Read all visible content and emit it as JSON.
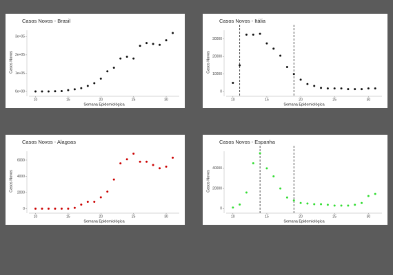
{
  "chart_data": [
    {
      "type": "scatter",
      "title": "Casos Novos - Brasil",
      "x_label": "Semana Epidemiológica",
      "y_label": "Casos Novos",
      "x": [
        10,
        11,
        12,
        13,
        14,
        15,
        16,
        17,
        18,
        19,
        20,
        21,
        22,
        23,
        24,
        25,
        26,
        27,
        28,
        29,
        30,
        31
      ],
      "values": [
        0,
        0,
        0,
        1000,
        2000,
        7000,
        12000,
        18000,
        30000,
        45000,
        70000,
        110000,
        130000,
        180000,
        190000,
        180000,
        250000,
        265000,
        260000,
        255000,
        280000,
        320000
      ],
      "color": "#111111",
      "xlim": [
        9,
        32
      ],
      "xticks": [
        10,
        15,
        20,
        25,
        30
      ],
      "ylim": [
        -15000,
        335000
      ],
      "yticks": [
        {
          "value": 0,
          "label": "0e+00"
        },
        {
          "value": 100000,
          "label": "1e+05"
        },
        {
          "value": 200000,
          "label": "2e+05"
        },
        {
          "value": 300000,
          "label": "3e+05"
        }
      ]
    },
    {
      "type": "scatter",
      "title": "Casos Novos - Itália",
      "x_label": "Semana Epidemiológica",
      "y_label": "Casos Novos",
      "x": [
        10,
        11,
        12,
        13,
        14,
        15,
        16,
        17,
        18,
        19,
        20,
        21,
        22,
        23,
        24,
        25,
        26,
        27,
        28,
        29,
        30,
        31
      ],
      "values": [
        5000,
        15000,
        32500,
        32500,
        33000,
        27500,
        24500,
        20500,
        14000,
        10000,
        6800,
        4300,
        3200,
        2100,
        1800,
        1800,
        1800,
        1400,
        1400,
        1400,
        1800,
        1800
      ],
      "color": "#111111",
      "xlim": [
        9,
        32
      ],
      "xticks": [
        10,
        15,
        20,
        25,
        30
      ],
      "ylim": [
        -1500,
        35000
      ],
      "yticks": [
        0,
        10000,
        20000,
        30000
      ],
      "vlines": [
        11,
        19
      ]
    },
    {
      "type": "scatter",
      "title": "Casos Novos - Alagoas",
      "x_label": "Semana Epidemiológica",
      "y_label": "Casos Novos",
      "x": [
        10,
        11,
        12,
        13,
        14,
        15,
        16,
        17,
        18,
        19,
        20,
        21,
        22,
        23,
        24,
        25,
        26,
        27,
        28,
        29,
        30,
        31
      ],
      "values": [
        0,
        0,
        0,
        0,
        0,
        0,
        100,
        500,
        850,
        850,
        1400,
        2100,
        3600,
        5600,
        6100,
        6800,
        5800,
        5800,
        5400,
        5000,
        5200,
        6300
      ],
      "color": "#cc0000",
      "xlim": [
        9,
        32
      ],
      "xticks": [
        10,
        15,
        20,
        25,
        30
      ],
      "ylim": [
        -300,
        7100
      ],
      "yticks": [
        0,
        2000,
        4000,
        6000
      ]
    },
    {
      "type": "scatter",
      "title": "Casos Novos - Espanha",
      "x_label": "Semana Epidemiológica",
      "y_label": "Casos Novos",
      "x": [
        10,
        11,
        12,
        13,
        14,
        15,
        16,
        17,
        18,
        19,
        20,
        21,
        22,
        23,
        24,
        25,
        26,
        27,
        28,
        29,
        30,
        31
      ],
      "values": [
        1000,
        4000,
        16000,
        45000,
        55000,
        40000,
        32000,
        20000,
        11000,
        8000,
        5500,
        5000,
        4300,
        4300,
        3700,
        3000,
        3000,
        3000,
        3700,
        5500,
        12500,
        14500
      ],
      "color": "#33dd33",
      "xlim": [
        9,
        32
      ],
      "xticks": [
        10,
        15,
        20,
        25,
        30
      ],
      "ylim": [
        -2500,
        57000
      ],
      "yticks": [
        0,
        20000,
        40000
      ],
      "vlines": [
        14,
        19
      ]
    }
  ]
}
